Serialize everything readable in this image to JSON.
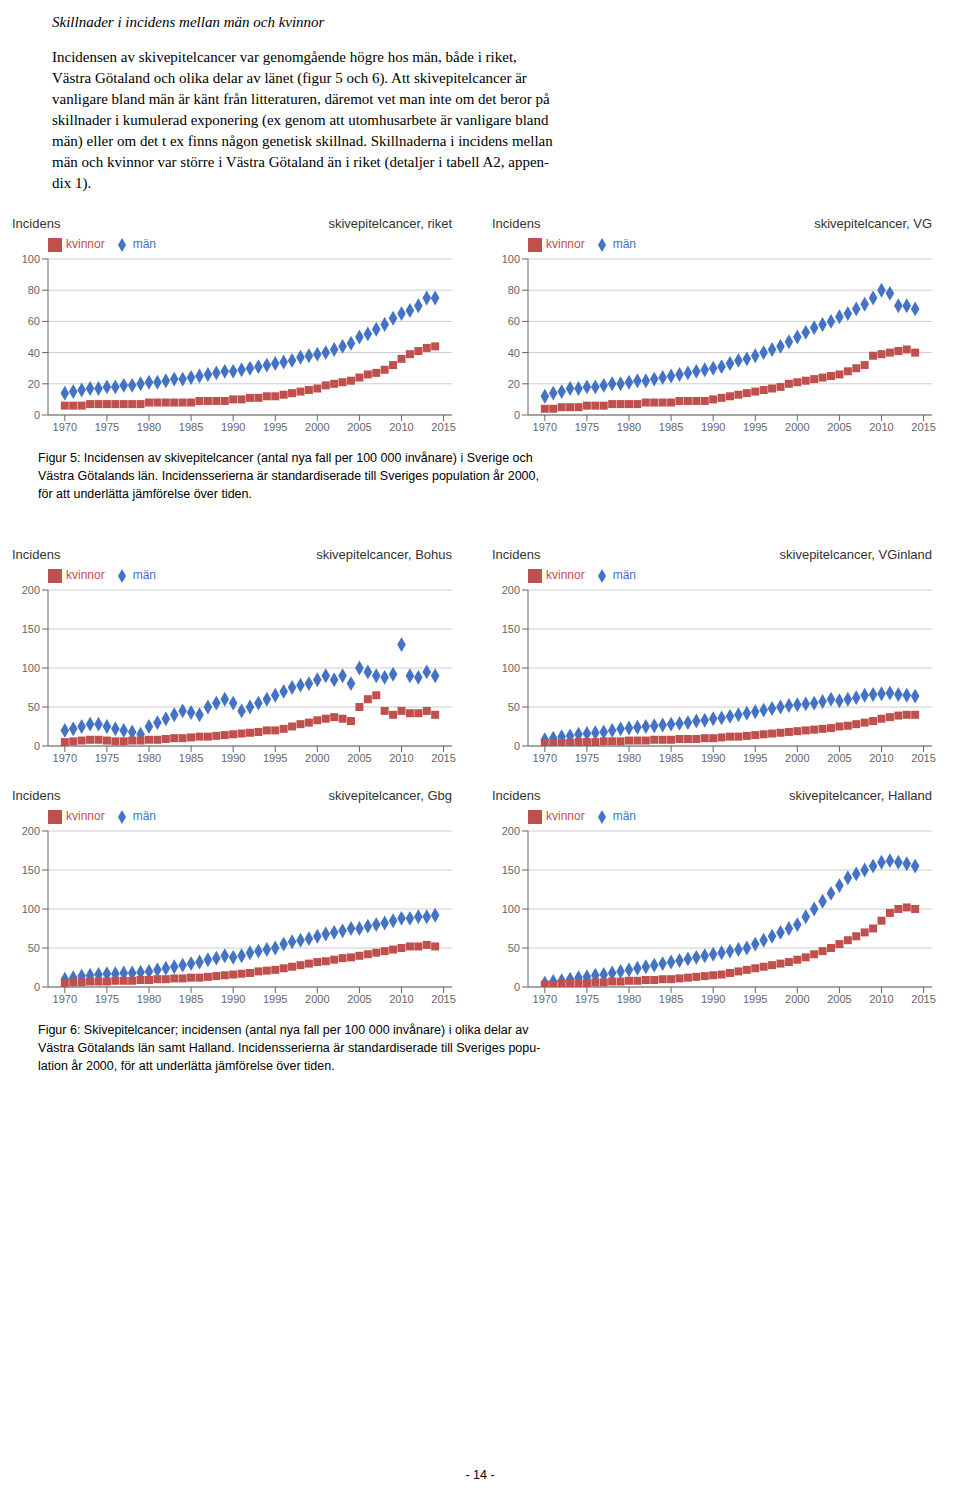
{
  "title": "Skillnader i incidens mellan män och kvinnor",
  "text": [
    "Incidensen av skivepitelcancer var genomgående högre hos män, både i riket,",
    "Västra Götaland och olika delar av länet (figur 5 och 6). Att skivepitelcancer är",
    "vanligare bland män är känt från litteraturen, däremot vet man inte om det beror på",
    "skillnader i kumulerad exponering (ex genom att utomhusarbete är vanligare bland",
    "män) eller om det t ex finns någon genetisk skillnad. Skillnaderna i incidens mellan",
    "män och kvinnor var större i Västra Götaland än i riket (detaljer i tabell A2, appen-",
    "dix 1)."
  ],
  "captions": [
    [
      "Figur 5: Incidensen av skivepitelcancer (antal nya fall per 100 000 invånare) i Sverige och",
      "Västra Götalands län. Incidensserierna är standardiserade till Sveriges population år 2000,",
      "för att underlätta jämförelse över tiden."
    ],
    [
      "Figur 6: Skivepitelcancer; incidensen (antal nya fall per 100 000 invånare) i olika delar av",
      "Västra Götalands län samt Halland. Incidensserierna är standardiserade till Sveriges popu-",
      "lation år 2000, för att underlätta jämförelse över tiden."
    ]
  ],
  "page_number": "- 14 -",
  "chart_data": [
    {
      "type": "scatter",
      "title": "skivepitelcancer, riket",
      "y_label": "Incidens",
      "x": [
        1970,
        1971,
        1972,
        1973,
        1974,
        1975,
        1976,
        1977,
        1978,
        1979,
        1980,
        1981,
        1982,
        1983,
        1984,
        1985,
        1986,
        1987,
        1988,
        1989,
        1990,
        1991,
        1992,
        1993,
        1994,
        1995,
        1996,
        1997,
        1998,
        1999,
        2000,
        2001,
        2002,
        2003,
        2004,
        2005,
        2006,
        2007,
        2008,
        2009,
        2010,
        2011,
        2012,
        2013,
        2014
      ],
      "xlim": [
        1968,
        2016
      ],
      "xticks": [
        1970,
        1975,
        1980,
        1985,
        1990,
        1995,
        2000,
        2005,
        2010,
        2015
      ],
      "ylim": [
        0,
        100
      ],
      "yticks": [
        0,
        20,
        40,
        60,
        80,
        100
      ],
      "grid": true,
      "legend": "upper left",
      "series": [
        {
          "name": "män",
          "color": "#4472C4",
          "marker": "diamond",
          "values": [
            14,
            15,
            16,
            17,
            17,
            18,
            18,
            19,
            19,
            20,
            21,
            21,
            22,
            23,
            23,
            24,
            25,
            26,
            27,
            28,
            28,
            29,
            30,
            31,
            32,
            33,
            34,
            35,
            37,
            38,
            39,
            40,
            42,
            44,
            46,
            50,
            52,
            55,
            58,
            62,
            65,
            67,
            70,
            75,
            75
          ]
        },
        {
          "name": "kvinnor",
          "color": "#C0504D",
          "marker": "square",
          "values": [
            6,
            6,
            6,
            7,
            7,
            7,
            7,
            7,
            7,
            7,
            8,
            8,
            8,
            8,
            8,
            8,
            9,
            9,
            9,
            9,
            10,
            10,
            11,
            11,
            12,
            12,
            13,
            14,
            15,
            16,
            17,
            19,
            20,
            21,
            22,
            24,
            26,
            27,
            29,
            32,
            36,
            39,
            41,
            43,
            44
          ]
        }
      ]
    },
    {
      "type": "scatter",
      "title": "skivepitelcancer, VG",
      "y_label": "Incidens",
      "x": [
        1970,
        1971,
        1972,
        1973,
        1974,
        1975,
        1976,
        1977,
        1978,
        1979,
        1980,
        1981,
        1982,
        1983,
        1984,
        1985,
        1986,
        1987,
        1988,
        1989,
        1990,
        1991,
        1992,
        1993,
        1994,
        1995,
        1996,
        1997,
        1998,
        1999,
        2000,
        2001,
        2002,
        2003,
        2004,
        2005,
        2006,
        2007,
        2008,
        2009,
        2010,
        2011,
        2012,
        2013,
        2014
      ],
      "xlim": [
        1968,
        2016
      ],
      "xticks": [
        1970,
        1975,
        1980,
        1985,
        1990,
        1995,
        2000,
        2005,
        2010,
        2015
      ],
      "ylim": [
        0,
        100
      ],
      "yticks": [
        0,
        20,
        40,
        60,
        80,
        100
      ],
      "grid": true,
      "legend": "upper left",
      "series": [
        {
          "name": "män",
          "color": "#4472C4",
          "marker": "diamond",
          "values": [
            12,
            14,
            15,
            17,
            17,
            18,
            18,
            19,
            20,
            20,
            21,
            22,
            22,
            23,
            24,
            25,
            26,
            27,
            28,
            29,
            30,
            31,
            33,
            35,
            36,
            38,
            40,
            42,
            44,
            47,
            50,
            53,
            56,
            58,
            60,
            63,
            65,
            68,
            71,
            75,
            80,
            78,
            70,
            70,
            68
          ]
        },
        {
          "name": "kvinnor",
          "color": "#C0504D",
          "marker": "square",
          "values": [
            4,
            4,
            5,
            5,
            5,
            6,
            6,
            6,
            7,
            7,
            7,
            7,
            8,
            8,
            8,
            8,
            9,
            9,
            9,
            9,
            10,
            11,
            12,
            13,
            14,
            15,
            16,
            17,
            18,
            20,
            21,
            22,
            23,
            24,
            25,
            26,
            28,
            30,
            32,
            38,
            39,
            40,
            41,
            42,
            40
          ]
        }
      ]
    },
    {
      "type": "scatter",
      "title": "skivepitelcancer, Bohus",
      "y_label": "Incidens",
      "x": [
        1970,
        1971,
        1972,
        1973,
        1974,
        1975,
        1976,
        1977,
        1978,
        1979,
        1980,
        1981,
        1982,
        1983,
        1984,
        1985,
        1986,
        1987,
        1988,
        1989,
        1990,
        1991,
        1992,
        1993,
        1994,
        1995,
        1996,
        1997,
        1998,
        1999,
        2000,
        2001,
        2002,
        2003,
        2004,
        2005,
        2006,
        2007,
        2008,
        2009,
        2010,
        2011,
        2012,
        2013,
        2014
      ],
      "xlim": [
        1968,
        2016
      ],
      "xticks": [
        1970,
        1975,
        1980,
        1985,
        1990,
        1995,
        2000,
        2005,
        2010,
        2015
      ],
      "ylim": [
        0,
        200
      ],
      "yticks": [
        0,
        50,
        100,
        150,
        200
      ],
      "grid": true,
      "legend": "upper left",
      "series": [
        {
          "name": "män",
          "color": "#4472C4",
          "marker": "diamond",
          "values": [
            20,
            22,
            25,
            28,
            28,
            25,
            22,
            20,
            18,
            15,
            25,
            30,
            35,
            40,
            45,
            43,
            40,
            50,
            55,
            60,
            55,
            45,
            50,
            55,
            60,
            65,
            70,
            75,
            78,
            80,
            85,
            90,
            85,
            90,
            80,
            100,
            95,
            90,
            88,
            92,
            130,
            90,
            88,
            95,
            90
          ]
        },
        {
          "name": "kvinnor",
          "color": "#C0504D",
          "marker": "square",
          "values": [
            5,
            6,
            7,
            8,
            8,
            7,
            6,
            6,
            7,
            7,
            8,
            8,
            9,
            10,
            10,
            11,
            12,
            12,
            13,
            14,
            15,
            16,
            17,
            18,
            20,
            20,
            22,
            25,
            28,
            30,
            33,
            35,
            37,
            35,
            32,
            50,
            60,
            65,
            45,
            40,
            45,
            42,
            42,
            45,
            40
          ]
        }
      ]
    },
    {
      "type": "scatter",
      "title": "skivepitelcancer, VGinland",
      "y_label": "Incidens",
      "x": [
        1970,
        1971,
        1972,
        1973,
        1974,
        1975,
        1976,
        1977,
        1978,
        1979,
        1980,
        1981,
        1982,
        1983,
        1984,
        1985,
        1986,
        1987,
        1988,
        1989,
        1990,
        1991,
        1992,
        1993,
        1994,
        1995,
        1996,
        1997,
        1998,
        1999,
        2000,
        2001,
        2002,
        2003,
        2004,
        2005,
        2006,
        2007,
        2008,
        2009,
        2010,
        2011,
        2012,
        2013,
        2014
      ],
      "xlim": [
        1968,
        2016
      ],
      "xticks": [
        1970,
        1975,
        1980,
        1985,
        1990,
        1995,
        2000,
        2005,
        2010,
        2015
      ],
      "ylim": [
        0,
        200
      ],
      "yticks": [
        0,
        50,
        100,
        150,
        200
      ],
      "grid": true,
      "legend": "upper left",
      "series": [
        {
          "name": "män",
          "color": "#4472C4",
          "marker": "diamond",
          "values": [
            8,
            10,
            12,
            13,
            15,
            16,
            17,
            18,
            20,
            22,
            23,
            24,
            25,
            26,
            27,
            28,
            29,
            30,
            32,
            33,
            35,
            36,
            38,
            40,
            42,
            44,
            46,
            48,
            50,
            52,
            53,
            54,
            55,
            57,
            60,
            58,
            60,
            62,
            65,
            66,
            67,
            68,
            66,
            65,
            64
          ]
        },
        {
          "name": "kvinnor",
          "color": "#C0504D",
          "marker": "square",
          "values": [
            3,
            3,
            4,
            4,
            5,
            5,
            5,
            6,
            6,
            6,
            7,
            7,
            7,
            8,
            8,
            8,
            9,
            9,
            9,
            10,
            10,
            11,
            12,
            12,
            13,
            14,
            15,
            16,
            17,
            18,
            19,
            20,
            21,
            22,
            23,
            25,
            26,
            28,
            30,
            32,
            35,
            37,
            39,
            40,
            40
          ]
        }
      ]
    },
    {
      "type": "scatter",
      "title": "skivepitelcancer, Gbg",
      "y_label": "Incidens",
      "x": [
        1970,
        1971,
        1972,
        1973,
        1974,
        1975,
        1976,
        1977,
        1978,
        1979,
        1980,
        1981,
        1982,
        1983,
        1984,
        1985,
        1986,
        1987,
        1988,
        1989,
        1990,
        1991,
        1992,
        1993,
        1994,
        1995,
        1996,
        1997,
        1998,
        1999,
        2000,
        2001,
        2002,
        2003,
        2004,
        2005,
        2006,
        2007,
        2008,
        2009,
        2010,
        2011,
        2012,
        2013,
        2014
      ],
      "xlim": [
        1968,
        2016
      ],
      "xticks": [
        1970,
        1975,
        1980,
        1985,
        1990,
        1995,
        2000,
        2005,
        2010,
        2015
      ],
      "ylim": [
        0,
        200
      ],
      "yticks": [
        0,
        50,
        100,
        150,
        200
      ],
      "grid": true,
      "legend": "upper left",
      "series": [
        {
          "name": "män",
          "color": "#4472C4",
          "marker": "diamond",
          "values": [
            10,
            12,
            14,
            15,
            16,
            17,
            17,
            18,
            18,
            19,
            20,
            22,
            24,
            26,
            28,
            30,
            32,
            35,
            37,
            40,
            38,
            40,
            44,
            46,
            48,
            50,
            55,
            58,
            60,
            62,
            65,
            68,
            70,
            72,
            75,
            75,
            78,
            80,
            82,
            85,
            88,
            88,
            90,
            90,
            92
          ]
        },
        {
          "name": "kvinnor",
          "color": "#C0504D",
          "marker": "square",
          "values": [
            5,
            6,
            6,
            7,
            7,
            7,
            8,
            8,
            8,
            9,
            9,
            10,
            10,
            11,
            11,
            12,
            12,
            13,
            14,
            15,
            16,
            17,
            18,
            20,
            21,
            22,
            24,
            26,
            28,
            30,
            32,
            33,
            35,
            37,
            38,
            40,
            42,
            44,
            46,
            48,
            50,
            52,
            52,
            54,
            52
          ]
        }
      ]
    },
    {
      "type": "scatter",
      "title": "skivepitelcancer, Halland",
      "y_label": "Incidens",
      "x": [
        1970,
        1971,
        1972,
        1973,
        1974,
        1975,
        1976,
        1977,
        1978,
        1979,
        1980,
        1981,
        1982,
        1983,
        1984,
        1985,
        1986,
        1987,
        1988,
        1989,
        1990,
        1991,
        1992,
        1993,
        1994,
        1995,
        1996,
        1997,
        1998,
        1999,
        2000,
        2001,
        2002,
        2003,
        2004,
        2005,
        2006,
        2007,
        2008,
        2009,
        2010,
        2011,
        2012,
        2013,
        2014
      ],
      "xlim": [
        1968,
        2016
      ],
      "xticks": [
        1970,
        1975,
        1980,
        1985,
        1990,
        1995,
        2000,
        2005,
        2010,
        2015
      ],
      "ylim": [
        0,
        200
      ],
      "yticks": [
        0,
        50,
        100,
        150,
        200
      ],
      "grid": true,
      "legend": "upper left",
      "series": [
        {
          "name": "män",
          "color": "#4472C4",
          "marker": "diamond",
          "values": [
            5,
            7,
            8,
            10,
            12,
            13,
            15,
            16,
            18,
            20,
            22,
            24,
            26,
            28,
            30,
            32,
            34,
            36,
            38,
            40,
            42,
            44,
            46,
            48,
            50,
            55,
            60,
            65,
            70,
            75,
            80,
            90,
            100,
            110,
            120,
            130,
            140,
            145,
            150,
            155,
            160,
            162,
            160,
            158,
            155
          ]
        },
        {
          "name": "kvinnor",
          "color": "#C0504D",
          "marker": "square",
          "values": [
            3,
            3,
            4,
            4,
            5,
            5,
            6,
            6,
            7,
            7,
            8,
            8,
            9,
            9,
            10,
            10,
            11,
            12,
            13,
            14,
            15,
            16,
            18,
            20,
            22,
            24,
            26,
            28,
            30,
            32,
            35,
            38,
            42,
            46,
            50,
            55,
            60,
            65,
            70,
            75,
            85,
            95,
            100,
            102,
            100
          ]
        }
      ]
    }
  ]
}
